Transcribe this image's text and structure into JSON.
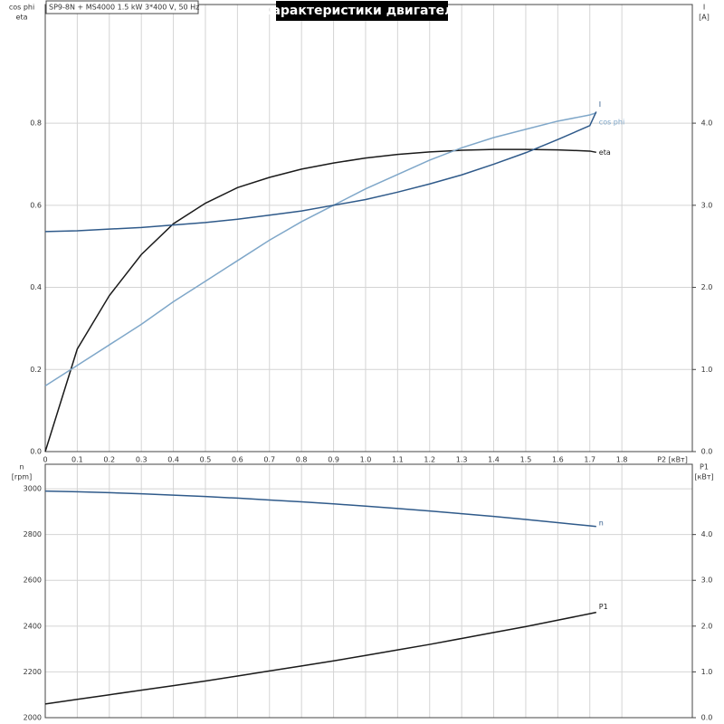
{
  "chart_data": [
    {
      "type": "line",
      "title": "Характеристики двигателя",
      "subtitle": "SP9-8N + MS4000   1.5 kW   3*400 V, 50 Hz",
      "x_label": "P2 [кВт]",
      "y_label_lines": [
        "cos phi",
        "eta"
      ],
      "y2_label_lines": [
        "I",
        "[A]"
      ],
      "xlim": [
        0,
        2.02
      ],
      "ylim": [
        0,
        1.089
      ],
      "y2lim": [
        0,
        5.445
      ],
      "xticks": [
        0,
        0.1,
        0.2,
        0.3,
        0.4,
        0.5,
        0.6,
        0.7,
        0.8,
        0.9,
        {
          "value": 1,
          "label": "1.0"
        },
        1.1,
        1.2,
        1.3,
        1.4,
        1.5,
        1.6,
        1.7,
        1.8
      ],
      "yticks": [
        {
          "value": 0,
          "label": "0.0"
        },
        0.2,
        0.4,
        0.6,
        0.8
      ],
      "y2ticks": [
        {
          "value": 0,
          "label": "0.0"
        },
        {
          "value": 1,
          "label": "1.0"
        },
        {
          "value": 2,
          "label": "2.0"
        },
        {
          "value": 3,
          "label": "3.0"
        },
        {
          "value": 4,
          "label": "4.0"
        }
      ],
      "grid": true,
      "x": [
        0,
        0.1,
        0.2,
        0.3,
        0.4,
        0.5,
        0.6,
        0.7,
        0.8,
        0.9,
        1.0,
        1.1,
        1.2,
        1.3,
        1.4,
        1.5,
        1.6,
        1.7,
        1.72
      ],
      "series": [
        {
          "name": "eta",
          "color": "#1a1a1a",
          "values": [
            0,
            0.25,
            0.38,
            0.48,
            0.555,
            0.605,
            0.643,
            0.668,
            0.688,
            0.703,
            0.715,
            0.724,
            0.73,
            0.734,
            0.736,
            0.736,
            0.735,
            0.732,
            0.729
          ]
        },
        {
          "name": "cos phi",
          "color": "#7fa7c9",
          "values": [
            0.16,
            0.21,
            0.26,
            0.31,
            0.365,
            0.415,
            0.465,
            0.515,
            0.56,
            0.6,
            0.64,
            0.675,
            0.71,
            0.74,
            0.765,
            0.785,
            0.805,
            0.82,
            0.825
          ]
        },
        {
          "name": "I",
          "color": "#2f5a8a",
          "axis": "y2",
          "values": [
            2.68,
            2.69,
            2.71,
            2.73,
            2.76,
            2.79,
            2.83,
            2.88,
            2.93,
            3.0,
            3.07,
            3.16,
            3.26,
            3.37,
            3.5,
            3.64,
            3.8,
            3.97,
            4.14
          ]
        }
      ]
    },
    {
      "type": "line",
      "y_label_lines": [
        "n",
        "[rpm]"
      ],
      "y2_label_lines": [
        "P1",
        "[кВт]"
      ],
      "xlim": [
        0,
        2.02
      ],
      "ylim": [
        2000,
        3107
      ],
      "y2lim": [
        0,
        5.535
      ],
      "yticks": [
        2000,
        2200,
        2400,
        2600,
        2800,
        3000
      ],
      "y2ticks": [
        {
          "value": 0,
          "label": "0.0"
        },
        {
          "value": 1,
          "label": "1.0"
        },
        {
          "value": 2,
          "label": "2.0"
        },
        {
          "value": 3,
          "label": "3.0"
        },
        {
          "value": 4,
          "label": "4.0"
        }
      ],
      "grid": true,
      "x": [
        0,
        0.1,
        0.2,
        0.3,
        0.4,
        0.5,
        0.6,
        0.7,
        0.8,
        0.9,
        1.0,
        1.1,
        1.2,
        1.3,
        1.4,
        1.5,
        1.6,
        1.7,
        1.72
      ],
      "series": [
        {
          "name": "n",
          "color": "#2f5a8a",
          "values": [
            2990,
            2987,
            2983,
            2978,
            2972,
            2966,
            2959,
            2951,
            2943,
            2934,
            2924,
            2914,
            2903,
            2891,
            2879,
            2866,
            2852,
            2838,
            2835
          ]
        },
        {
          "name": "P1",
          "color": "#1a1a1a",
          "axis": "y2",
          "values": [
            0.3,
            0.4,
            0.5,
            0.6,
            0.7,
            0.8,
            0.91,
            1.02,
            1.13,
            1.24,
            1.36,
            1.48,
            1.6,
            1.73,
            1.86,
            1.99,
            2.13,
            2.27,
            2.3
          ]
        }
      ]
    }
  ]
}
